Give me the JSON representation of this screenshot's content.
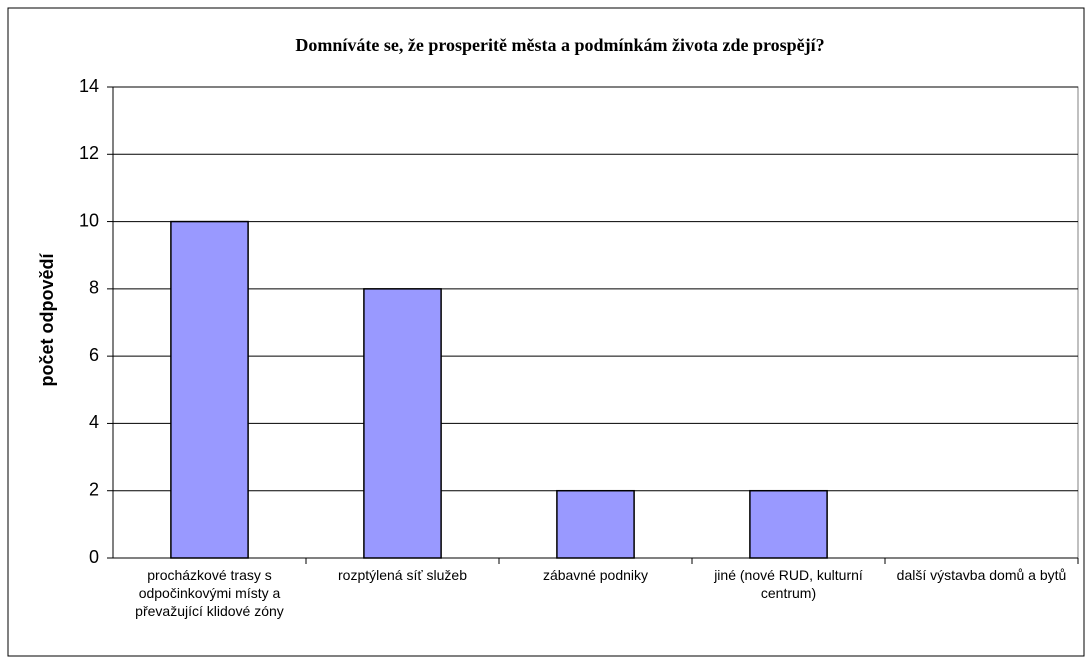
{
  "chart_data": {
    "type": "bar",
    "title": "Domníváte se, že prosperitě města a podmínkám života zde prospějí?",
    "y_label": "počet odpovědí",
    "categories": [
      "procházkové trasy s odpočinkovými místy a převažující klidové zóny",
      "rozptýlená síť služeb",
      "zábavné podniky",
      "jiné (nové RUD, kulturní centrum)",
      "další výstavba domů a bytů"
    ],
    "values": [
      10,
      8,
      2,
      2,
      0
    ],
    "color": "#9999ff",
    "ylim": [
      0,
      14
    ],
    "yticks": [
      0,
      2,
      4,
      6,
      8,
      10,
      12,
      14
    ],
    "grid": true
  }
}
